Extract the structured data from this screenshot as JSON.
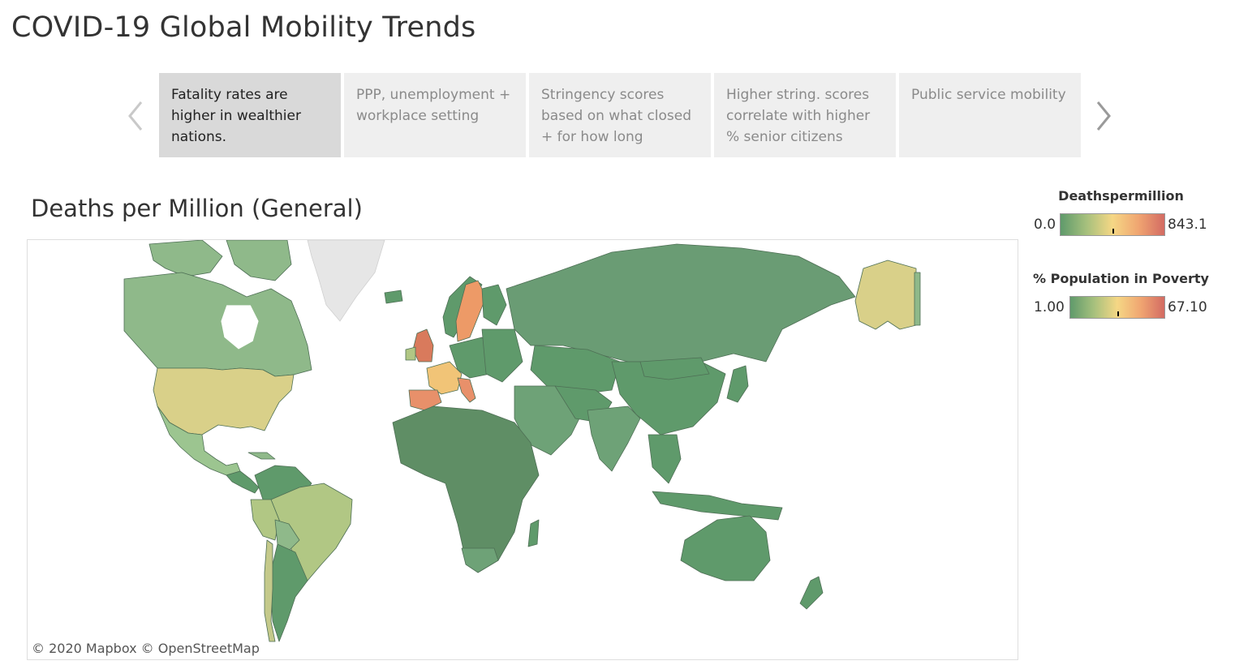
{
  "page": {
    "title": "COVID-19 Global Mobility Trends"
  },
  "story": {
    "points": [
      {
        "label": "Fatality rates are higher in wealthier nations.",
        "active": true
      },
      {
        "label": "PPP, unemployment + workplace setting",
        "active": false
      },
      {
        "label": "Stringency scores based on what closed + for how long",
        "active": false
      },
      {
        "label": "Higher string. scores correlate with higher % senior citizens",
        "active": false
      },
      {
        "label": "Public service mobility",
        "active": false
      }
    ],
    "prev_icon": "chevron-left-icon",
    "next_icon": "chevron-right-icon"
  },
  "map": {
    "title": "Deaths per Million (General)",
    "attribution": "© 2020 Mapbox © OpenStreetMap",
    "measure": "Deathspermillion",
    "color_scale": [
      "#5f9a6b",
      "#a6c07d",
      "#f5d785",
      "#f0a571",
      "#d36b63"
    ],
    "region_values": {
      "Canada": "light-green",
      "United States": "khaki",
      "Alaska": "khaki",
      "Mexico": "light-green",
      "Brazil": "yellow-green",
      "Peru": "yellow-green",
      "United Kingdom": "red-orange",
      "Spain": "orange",
      "Italy": "orange",
      "France": "light-orange",
      "Sweden": "orange",
      "Russia": "green",
      "China": "green",
      "Africa": "green",
      "Australia": "green"
    }
  },
  "legends": [
    {
      "title": "Deathspermillion",
      "min": "0.0",
      "max": "843.1",
      "marker": 0.5,
      "colors": [
        "#5f9a6b",
        "#a6c07d",
        "#f5d785",
        "#f0a571",
        "#d36b63"
      ]
    },
    {
      "title": "% Population in Poverty",
      "min": "1.00",
      "max": "67.10",
      "marker": 0.5,
      "colors": [
        "#5f9a6b",
        "#a6c07d",
        "#f5d785",
        "#f0a571",
        "#d36b63"
      ]
    }
  ]
}
